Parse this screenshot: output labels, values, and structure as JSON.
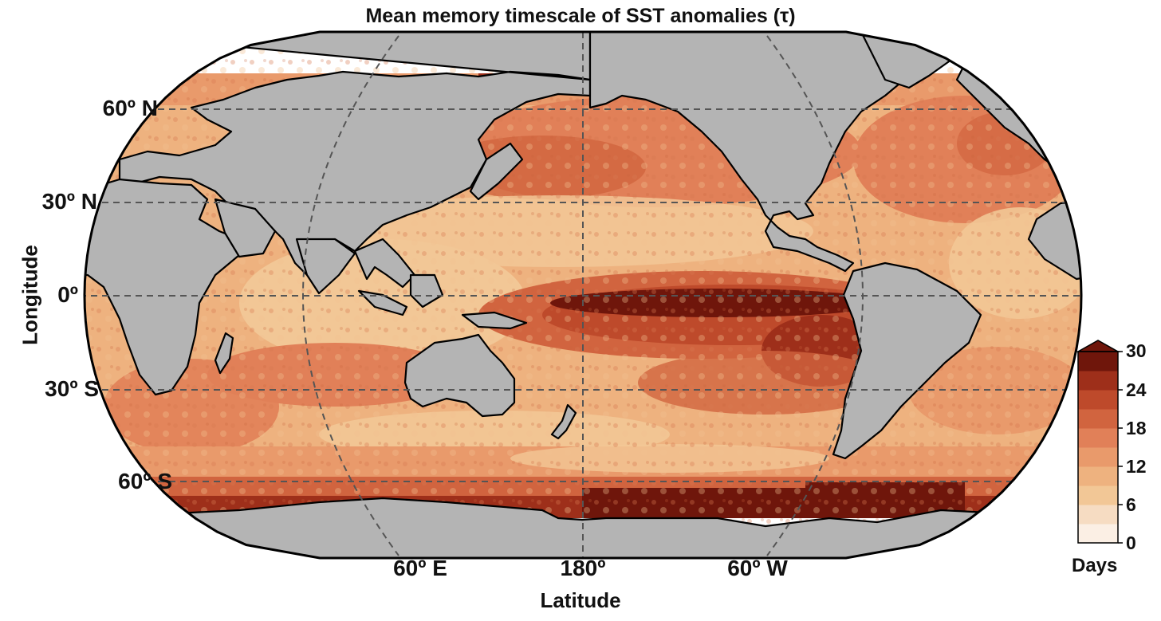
{
  "title": "Mean memory timescale of SST anomalies (τ)",
  "axes": {
    "x_title": "Latitude",
    "y_title": "Longitude",
    "lat_ticks": [
      "60º N",
      "30º N",
      "0º",
      "30º S",
      "60º S"
    ],
    "lon_ticks": [
      "60º E",
      "180º",
      "60º W"
    ]
  },
  "projection": "Robinson-like, Pacific-centered (central meridian 180º)",
  "colorbar": {
    "unit": "Days",
    "ticks": [
      "30",
      "24",
      "18",
      "12",
      "6",
      "0"
    ],
    "range": [
      0,
      30
    ],
    "extend": "max",
    "colors": [
      "#fbefe4",
      "#f6dcc2",
      "#f2c796",
      "#eeb27f",
      "#e99a6b",
      "#e18058",
      "#d1643f",
      "#be4a2b",
      "#9e2f1a",
      "#6f160b"
    ]
  },
  "colors": {
    "land": "#b4b4b4",
    "coastline": "#000000",
    "gridline": "#555555",
    "no_data": "#ffffff"
  }
}
